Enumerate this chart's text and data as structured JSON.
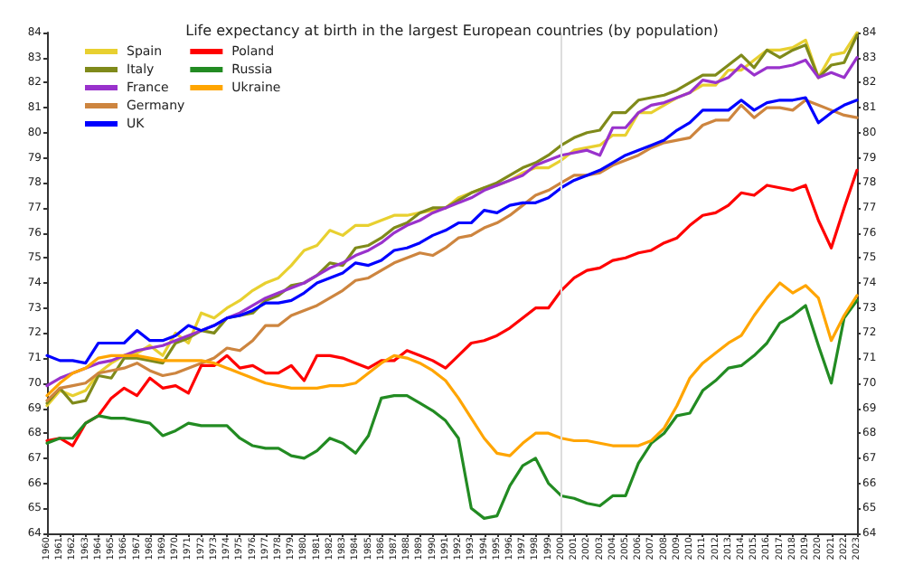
{
  "chart_data": {
    "type": "line",
    "title": "Life expectancy at birth in the largest European countries (by population)",
    "x": [
      1960,
      1961,
      1962,
      1963,
      1964,
      1965,
      1966,
      1967,
      1968,
      1969,
      1970,
      1971,
      1972,
      1973,
      1974,
      1975,
      1976,
      1977,
      1978,
      1979,
      1980,
      1981,
      1982,
      1983,
      1984,
      1985,
      1986,
      1987,
      1988,
      1989,
      1990,
      1991,
      1992,
      1993,
      1994,
      1995,
      1996,
      1997,
      1998,
      1999,
      2000,
      2001,
      2002,
      2003,
      2004,
      2005,
      2006,
      2007,
      2008,
      2009,
      2010,
      2011,
      2012,
      2013,
      2014,
      2015,
      2016,
      2017,
      2018,
      2019,
      2020,
      2021,
      2022,
      2023
    ],
    "series": [
      {
        "name": "Spain",
        "color": "#e8d030",
        "values": [
          69.1,
          69.7,
          69.5,
          69.7,
          70.4,
          70.8,
          71.1,
          71.2,
          71.5,
          71.1,
          72.0,
          71.6,
          72.8,
          72.6,
          73.0,
          73.3,
          73.7,
          74.0,
          74.2,
          74.7,
          75.3,
          75.5,
          76.1,
          75.9,
          76.3,
          76.3,
          76.5,
          76.7,
          76.7,
          76.8,
          76.9,
          77.0,
          77.4,
          77.6,
          77.8,
          77.9,
          78.1,
          78.4,
          78.6,
          78.6,
          78.9,
          79.3,
          79.4,
          79.5,
          79.9,
          79.9,
          80.8,
          80.8,
          81.1,
          81.4,
          81.6,
          81.9,
          81.9,
          82.5,
          82.5,
          82.9,
          83.3,
          83.3,
          83.4,
          83.7,
          82.2,
          83.1,
          83.2,
          84.0
        ]
      },
      {
        "name": "Italy",
        "color": "#7f8a1a",
        "values": [
          69.2,
          69.8,
          69.2,
          69.3,
          70.3,
          70.2,
          71.0,
          71.0,
          70.9,
          70.8,
          71.6,
          71.8,
          72.1,
          72.0,
          72.6,
          72.7,
          72.8,
          73.3,
          73.5,
          73.9,
          74.0,
          74.3,
          74.8,
          74.7,
          75.4,
          75.5,
          75.8,
          76.2,
          76.4,
          76.8,
          77.0,
          77.0,
          77.3,
          77.6,
          77.8,
          78.0,
          78.3,
          78.6,
          78.8,
          79.1,
          79.5,
          79.8,
          80.0,
          80.1,
          80.8,
          80.8,
          81.3,
          81.4,
          81.5,
          81.7,
          82.0,
          82.3,
          82.3,
          82.7,
          83.1,
          82.6,
          83.3,
          83.0,
          83.3,
          83.5,
          82.2,
          82.7,
          82.8,
          83.9
        ]
      },
      {
        "name": "France",
        "color": "#9932cc",
        "values": [
          69.9,
          70.2,
          70.4,
          70.6,
          70.8,
          70.9,
          71.1,
          71.3,
          71.4,
          71.5,
          71.7,
          71.9,
          72.1,
          72.3,
          72.6,
          72.8,
          73.1,
          73.4,
          73.6,
          73.8,
          74.0,
          74.3,
          74.6,
          74.8,
          75.1,
          75.3,
          75.6,
          76.0,
          76.3,
          76.5,
          76.8,
          77.0,
          77.2,
          77.4,
          77.7,
          77.9,
          78.1,
          78.3,
          78.7,
          78.9,
          79.1,
          79.2,
          79.3,
          79.1,
          80.2,
          80.2,
          80.8,
          81.1,
          81.2,
          81.4,
          81.6,
          82.1,
          82.0,
          82.2,
          82.7,
          82.3,
          82.6,
          82.6,
          82.7,
          82.9,
          82.2,
          82.4,
          82.2,
          83.0
        ]
      },
      {
        "name": "Germany",
        "color": "#cd853f",
        "values": [
          69.3,
          69.8,
          69.9,
          70.0,
          70.4,
          70.5,
          70.6,
          70.8,
          70.5,
          70.3,
          70.4,
          70.6,
          70.8,
          71.0,
          71.4,
          71.3,
          71.7,
          72.3,
          72.3,
          72.7,
          72.9,
          73.1,
          73.4,
          73.7,
          74.1,
          74.2,
          74.5,
          74.8,
          75.0,
          75.2,
          75.1,
          75.4,
          75.8,
          75.9,
          76.2,
          76.4,
          76.7,
          77.1,
          77.5,
          77.7,
          78.0,
          78.3,
          78.3,
          78.4,
          78.7,
          78.9,
          79.1,
          79.4,
          79.6,
          79.7,
          79.8,
          80.3,
          80.5,
          80.5,
          81.1,
          80.6,
          81.0,
          81.0,
          80.9,
          81.3,
          81.1,
          80.9,
          80.7,
          80.6
        ]
      },
      {
        "name": "UK",
        "color": "#0000ff",
        "values": [
          71.1,
          70.9,
          70.9,
          70.8,
          71.6,
          71.6,
          71.6,
          72.1,
          71.7,
          71.7,
          71.9,
          72.3,
          72.1,
          72.3,
          72.6,
          72.7,
          72.9,
          73.2,
          73.2,
          73.3,
          73.6,
          74.0,
          74.2,
          74.4,
          74.8,
          74.7,
          74.9,
          75.3,
          75.4,
          75.6,
          75.9,
          76.1,
          76.4,
          76.4,
          76.9,
          76.8,
          77.1,
          77.2,
          77.2,
          77.4,
          77.8,
          78.1,
          78.3,
          78.5,
          78.8,
          79.1,
          79.3,
          79.5,
          79.7,
          80.1,
          80.4,
          80.9,
          80.9,
          80.9,
          81.3,
          80.9,
          81.2,
          81.3,
          81.3,
          81.4,
          80.4,
          80.8,
          81.1,
          81.3
        ]
      },
      {
        "name": "Poland",
        "color": "#ff0000",
        "values": [
          67.7,
          67.8,
          67.5,
          68.4,
          68.7,
          69.4,
          69.8,
          69.5,
          70.2,
          69.8,
          69.9,
          69.6,
          70.7,
          70.7,
          71.1,
          70.6,
          70.7,
          70.4,
          70.4,
          70.7,
          70.1,
          71.1,
          71.1,
          71.0,
          70.8,
          70.6,
          70.9,
          70.9,
          71.3,
          71.1,
          70.9,
          70.6,
          71.1,
          71.6,
          71.7,
          71.9,
          72.2,
          72.6,
          73.0,
          73.0,
          73.7,
          74.2,
          74.5,
          74.6,
          74.9,
          75.0,
          75.2,
          75.3,
          75.6,
          75.8,
          76.3,
          76.7,
          76.8,
          77.1,
          77.6,
          77.5,
          77.9,
          77.8,
          77.7,
          77.9,
          76.5,
          75.4,
          77.0,
          78.5
        ]
      },
      {
        "name": "Russia",
        "color": "#228b22",
        "values": [
          67.6,
          67.8,
          67.8,
          68.4,
          68.7,
          68.6,
          68.6,
          68.5,
          68.4,
          67.9,
          68.1,
          68.4,
          68.3,
          68.3,
          68.3,
          67.8,
          67.5,
          67.4,
          67.4,
          67.1,
          67.0,
          67.3,
          67.8,
          67.6,
          67.2,
          67.9,
          69.4,
          69.5,
          69.5,
          69.2,
          68.9,
          68.5,
          67.8,
          65.0,
          64.6,
          64.7,
          65.9,
          66.7,
          67.0,
          66.0,
          65.5,
          65.4,
          65.2,
          65.1,
          65.5,
          65.5,
          66.8,
          67.6,
          68.0,
          68.7,
          68.8,
          69.7,
          70.1,
          70.6,
          70.7,
          71.1,
          71.6,
          72.4,
          72.7,
          73.1,
          71.5,
          70.0,
          72.6,
          73.3
        ]
      },
      {
        "name": "Ukraine",
        "color": "#ffa500",
        "values": [
          69.5,
          70.0,
          70.4,
          70.6,
          71.0,
          71.1,
          71.1,
          71.1,
          71.0,
          70.9,
          70.9,
          70.9,
          70.9,
          70.8,
          70.6,
          70.4,
          70.2,
          70.0,
          69.9,
          69.8,
          69.8,
          69.8,
          69.9,
          69.9,
          70.0,
          70.4,
          70.8,
          71.1,
          71.0,
          70.8,
          70.5,
          70.1,
          69.4,
          68.6,
          67.8,
          67.2,
          67.1,
          67.6,
          68.0,
          68.0,
          67.8,
          67.7,
          67.7,
          67.6,
          67.5,
          67.5,
          67.5,
          67.7,
          68.2,
          69.1,
          70.2,
          70.8,
          71.2,
          71.6,
          71.9,
          72.7,
          73.4,
          74.0,
          73.6,
          73.9,
          73.4,
          71.7,
          72.7,
          73.5
        ]
      }
    ],
    "xlim": [
      1960,
      2023
    ],
    "xticks": [
      1960,
      1961,
      1962,
      1963,
      1964,
      1965,
      1966,
      1967,
      1968,
      1969,
      1970,
      1971,
      1972,
      1973,
      1974,
      1975,
      1976,
      1977,
      1978,
      1979,
      1980,
      1981,
      1982,
      1983,
      1984,
      1985,
      1986,
      1987,
      1988,
      1989,
      1990,
      1991,
      1992,
      1993,
      1994,
      1995,
      1996,
      1997,
      1998,
      1999,
      2000,
      2001,
      2002,
      2003,
      2004,
      2005,
      2006,
      2007,
      2008,
      2009,
      2010,
      2011,
      2012,
      2013,
      2014,
      2015,
      2016,
      2017,
      2018,
      2019,
      2020,
      2021,
      2022,
      2023
    ],
    "ylim": [
      64,
      84
    ],
    "yticks": [
      64,
      65,
      66,
      67,
      68,
      69,
      70,
      71,
      72,
      73,
      74,
      75,
      76,
      77,
      78,
      79,
      80,
      81,
      82,
      83,
      84
    ],
    "y2lim": [
      64,
      84
    ],
    "y2ticks": [
      64,
      65,
      66,
      67,
      68,
      69,
      70,
      71,
      72,
      73,
      74,
      75,
      76,
      77,
      78,
      79,
      80,
      81,
      82,
      83,
      84
    ],
    "ref_lines": [
      {
        "axis": "x",
        "value": 2000,
        "color": "#dddddd"
      }
    ],
    "grid": false,
    "legend": "top left",
    "marker": "none",
    "line_style": "solid"
  }
}
